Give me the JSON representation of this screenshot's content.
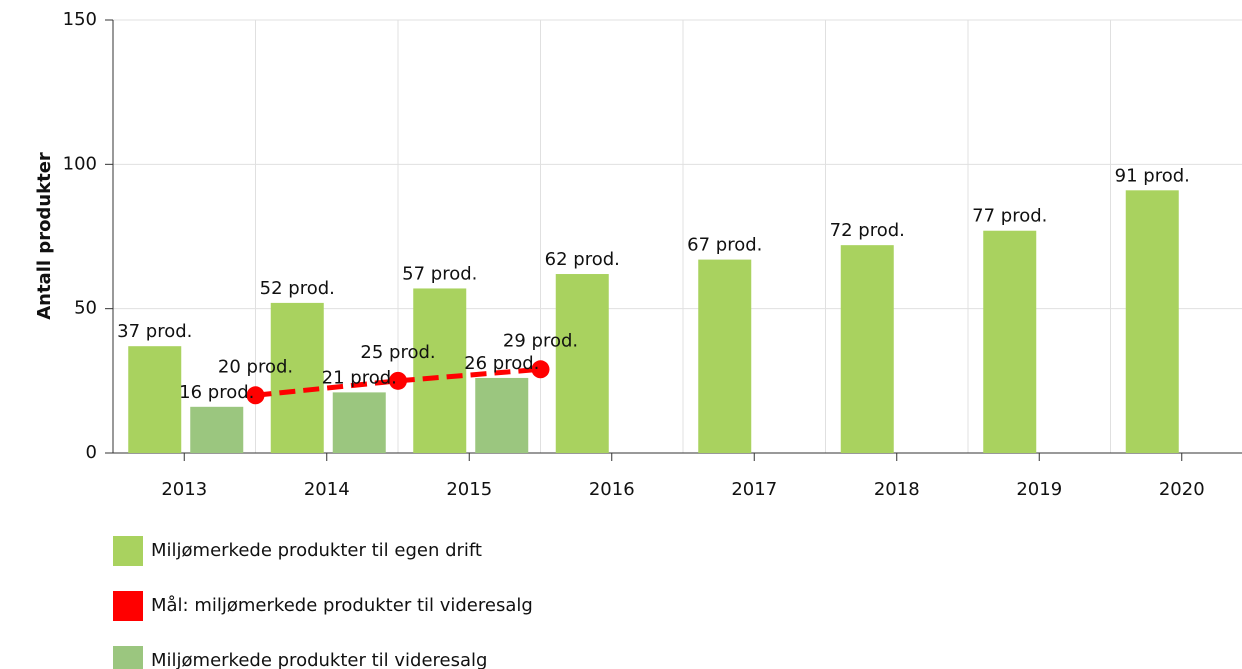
{
  "chart_data": {
    "type": "bar",
    "ylabel": "Antall produkter",
    "categories": [
      "2013",
      "2014",
      "2015",
      "2016",
      "2017",
      "2018",
      "2019",
      "2020"
    ],
    "series": [
      {
        "name": "Miljømerkede produkter til egen drift",
        "type": "bar",
        "color": "#a9d25f",
        "values": [
          37,
          52,
          57,
          62,
          67,
          72,
          77,
          91
        ],
        "value_labels": [
          "37 prod.",
          "52 prod.",
          "57 prod.",
          "62 prod.",
          "67 prod.",
          "72 prod.",
          "77 prod.",
          "91 prod."
        ]
      },
      {
        "name": "Mål: miljømerkede produkter til videresalg",
        "type": "line",
        "color": "#ff0000",
        "values": [
          null,
          20,
          25,
          29,
          null,
          null,
          null,
          null
        ],
        "value_labels": [
          null,
          "20 prod.",
          "25 prod.",
          "29 prod.",
          null,
          null,
          null,
          null
        ]
      },
      {
        "name": "Miljømerkede produkter til videresalg",
        "type": "bar",
        "color": "#9bc67f",
        "values": [
          16,
          21,
          26,
          null,
          null,
          null,
          null,
          null
        ],
        "value_labels": [
          "16 prod.",
          "21 prod.",
          "26 prod.",
          null,
          null,
          null,
          null,
          null
        ]
      }
    ],
    "ylim": [
      0,
      150
    ],
    "yticks": [
      0,
      50,
      100,
      150
    ],
    "grid": true
  }
}
